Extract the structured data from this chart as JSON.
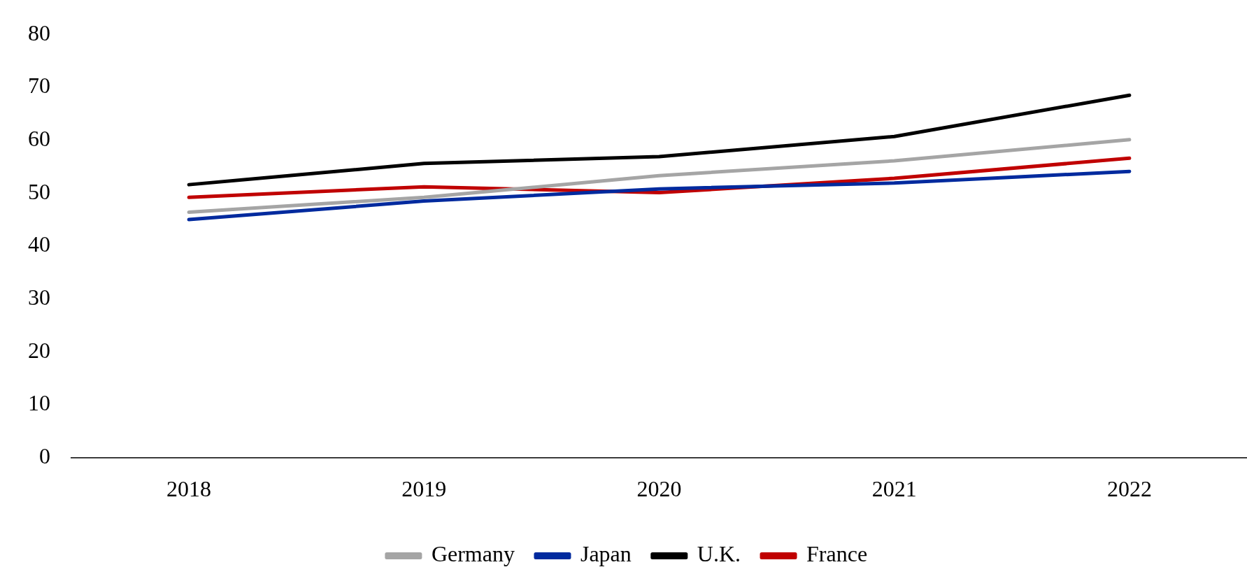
{
  "chart_data": {
    "type": "line",
    "categories": [
      "2018",
      "2019",
      "2020",
      "2021",
      "2022"
    ],
    "series": [
      {
        "name": "Germany",
        "color": "#a5a5a5",
        "values": [
          46.4,
          49.2,
          53.3,
          56.1,
          60.1
        ]
      },
      {
        "name": "Japan",
        "color": "#002a9e",
        "values": [
          45.0,
          48.5,
          50.8,
          51.9,
          54.1
        ]
      },
      {
        "name": "U.K.",
        "color": "#000000",
        "values": [
          51.6,
          55.6,
          56.9,
          60.7,
          68.5
        ]
      },
      {
        "name": "France",
        "color": "#c00000",
        "values": [
          49.2,
          51.2,
          50.1,
          52.8,
          56.6
        ]
      }
    ],
    "ylim": [
      0,
      80
    ],
    "yticks": [
      0,
      10,
      20,
      30,
      40,
      50,
      60,
      70,
      80
    ],
    "grid": false,
    "legend": "bottom",
    "marker": "none",
    "line_style": "solid"
  }
}
